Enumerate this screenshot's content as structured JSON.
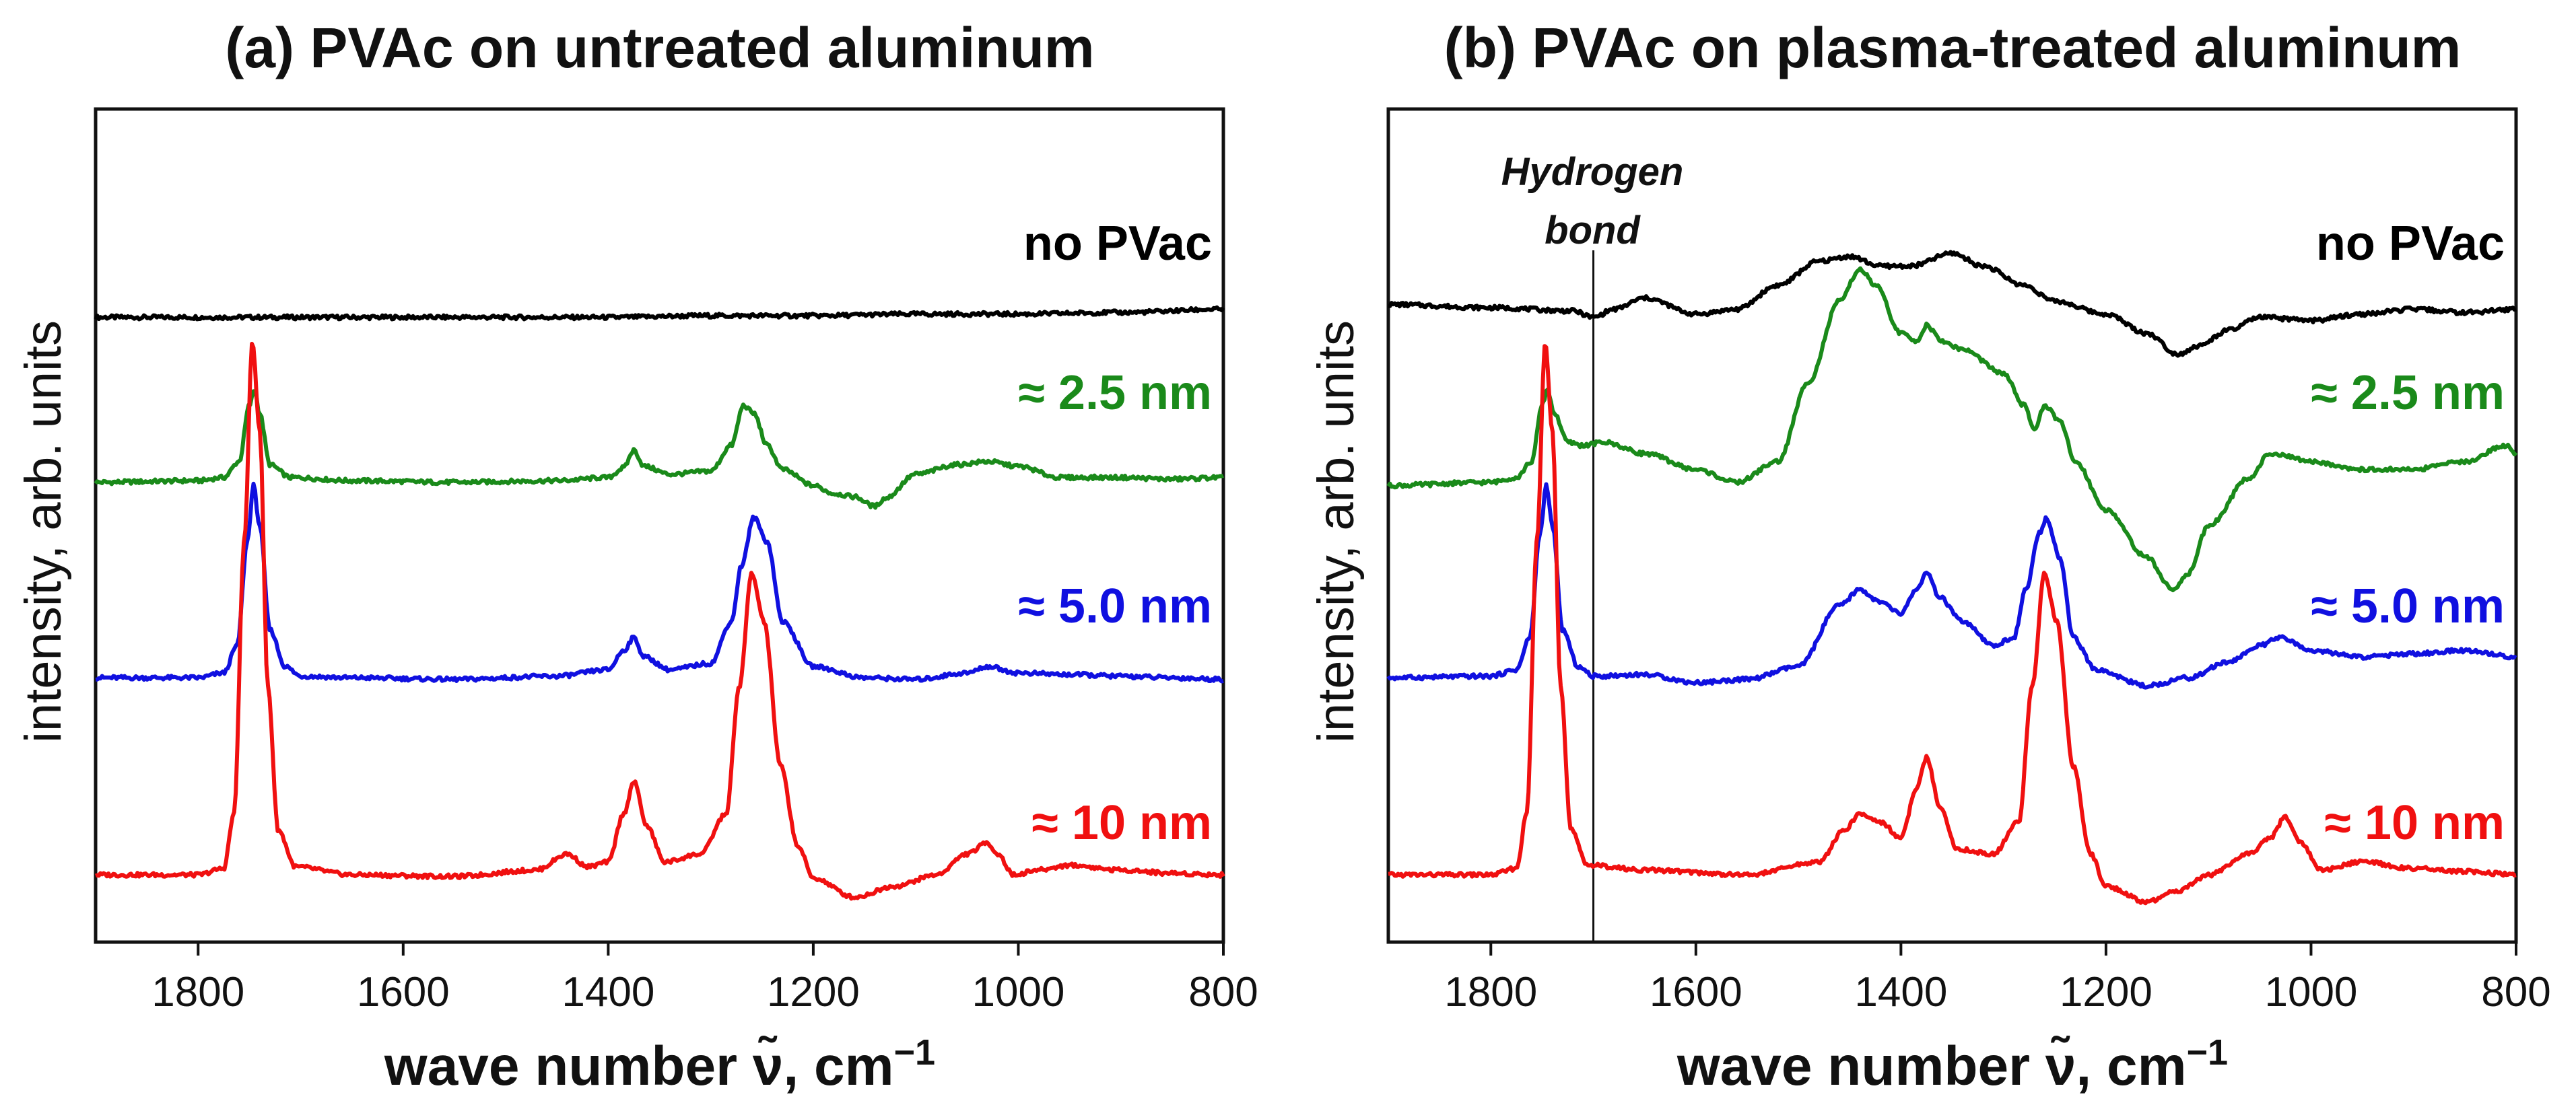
{
  "chart_data": [
    {
      "panel": "a",
      "type": "line",
      "title": "(a) PVAc on untreated aluminum",
      "xlabel": "wave number",
      "xlabel_symbol": "ν̃",
      "xlabel_unit": ", cm",
      "xlabel_unit_sup": "−1",
      "ylabel": "intensity, arb. units",
      "xlim": [
        1900,
        800
      ],
      "ylim": [
        0,
        5.2
      ],
      "xticks": [
        1800,
        1600,
        1400,
        1200,
        1000,
        800
      ],
      "series": [
        {
          "name": "no PVac",
          "color": "#000000",
          "x": [
            1900,
            1800,
            1700,
            1600,
            1500,
            1400,
            1300,
            1200,
            1100,
            1000,
            900,
            800
          ],
          "y": [
            3.9,
            3.9,
            3.9,
            3.9,
            3.9,
            3.9,
            3.91,
            3.91,
            3.92,
            3.92,
            3.93,
            3.95
          ]
        },
        {
          "name": "≈ 2.5 nm",
          "color": "#1a8a1a",
          "x": [
            1900,
            1800,
            1775,
            1760,
            1750,
            1745,
            1740,
            1730,
            1710,
            1650,
            1550,
            1450,
            1400,
            1385,
            1375,
            1365,
            1340,
            1300,
            1280,
            1268,
            1258,
            1245,
            1230,
            1200,
            1180,
            1160,
            1140,
            1130,
            1100,
            1060,
            1030,
            1000,
            960,
            900,
            850,
            800
          ],
          "y": [
            2.87,
            2.88,
            2.9,
            3.0,
            3.35,
            3.45,
            3.3,
            2.98,
            2.9,
            2.88,
            2.87,
            2.88,
            2.9,
            2.96,
            3.07,
            2.97,
            2.92,
            2.94,
            3.1,
            3.35,
            3.3,
            3.1,
            2.95,
            2.85,
            2.8,
            2.78,
            2.72,
            2.77,
            2.92,
            2.98,
            3.0,
            2.97,
            2.9,
            2.9,
            2.89,
            2.9
          ]
        },
        {
          "name": "≈ 5.0 nm",
          "color": "#1010e0",
          "x": [
            1900,
            1800,
            1775,
            1762,
            1752,
            1746,
            1740,
            1730,
            1715,
            1700,
            1650,
            1550,
            1450,
            1400,
            1385,
            1375,
            1365,
            1340,
            1300,
            1280,
            1270,
            1258,
            1245,
            1230,
            1200,
            1150,
            1100,
            1050,
            1030,
            1000,
            950,
            900,
            850,
            800
          ],
          "y": [
            1.65,
            1.65,
            1.68,
            1.85,
            2.5,
            2.85,
            2.6,
            1.95,
            1.72,
            1.66,
            1.65,
            1.64,
            1.66,
            1.7,
            1.82,
            1.9,
            1.78,
            1.7,
            1.74,
            2.0,
            2.35,
            2.65,
            2.5,
            2.0,
            1.72,
            1.65,
            1.64,
            1.68,
            1.72,
            1.68,
            1.67,
            1.66,
            1.65,
            1.64
          ]
        },
        {
          "name": "≈ 10 nm",
          "color": "#f01010",
          "x": [
            1900,
            1800,
            1775,
            1765,
            1755,
            1747,
            1740,
            1732,
            1722,
            1705,
            1650,
            1550,
            1470,
            1440,
            1420,
            1400,
            1385,
            1375,
            1362,
            1345,
            1310,
            1285,
            1272,
            1260,
            1248,
            1232,
            1215,
            1200,
            1160,
            1120,
            1080,
            1050,
            1030,
            1020,
            1005,
            980,
            950,
            900,
            850,
            800
          ],
          "y": [
            0.42,
            0.42,
            0.46,
            0.8,
            2.5,
            3.75,
            3.2,
            1.6,
            0.7,
            0.47,
            0.42,
            0.41,
            0.45,
            0.55,
            0.47,
            0.5,
            0.8,
            1.0,
            0.72,
            0.5,
            0.55,
            0.8,
            1.6,
            2.3,
            2.0,
            1.1,
            0.6,
            0.4,
            0.28,
            0.35,
            0.42,
            0.55,
            0.62,
            0.55,
            0.42,
            0.45,
            0.48,
            0.45,
            0.43,
            0.42
          ]
        }
      ]
    },
    {
      "panel": "b",
      "type": "line",
      "title": "(b) PVAc on plasma-treated aluminum",
      "xlabel": "wave number",
      "xlabel_symbol": "ν̃",
      "xlabel_unit": ", cm",
      "xlabel_unit_sup": "−1",
      "ylabel": "intensity, arb. units",
      "xlim": [
        1900,
        800
      ],
      "ylim": [
        0,
        5.2
      ],
      "xticks": [
        1800,
        1600,
        1400,
        1200,
        1000,
        800
      ],
      "vline": {
        "x": 1700,
        "label_line1": "Hydrogen",
        "label_line2": "bond"
      },
      "series": [
        {
          "name": "no PVac",
          "color": "#000000",
          "x": [
            1900,
            1800,
            1720,
            1700,
            1680,
            1650,
            1600,
            1560,
            1520,
            1480,
            1450,
            1420,
            1390,
            1350,
            1320,
            1280,
            1250,
            1200,
            1160,
            1130,
            1110,
            1080,
            1050,
            1000,
            950,
            900,
            850,
            800
          ],
          "y": [
            3.98,
            3.96,
            3.94,
            3.9,
            3.95,
            4.02,
            3.92,
            3.95,
            4.1,
            4.25,
            4.28,
            4.22,
            4.22,
            4.3,
            4.22,
            4.1,
            4.0,
            3.92,
            3.8,
            3.67,
            3.72,
            3.82,
            3.9,
            3.88,
            3.92,
            3.95,
            3.93,
            3.95
          ]
        },
        {
          "name": "≈ 2.5 nm",
          "color": "#1a8a1a",
          "x": [
            1900,
            1800,
            1775,
            1760,
            1750,
            1745,
            1738,
            1725,
            1710,
            1690,
            1650,
            1600,
            1560,
            1520,
            1490,
            1460,
            1440,
            1425,
            1400,
            1385,
            1375,
            1360,
            1340,
            1300,
            1280,
            1270,
            1260,
            1245,
            1230,
            1200,
            1160,
            1135,
            1120,
            1100,
            1060,
            1040,
            1000,
            950,
            900,
            850,
            810,
            800
          ],
          "y": [
            2.85,
            2.87,
            2.9,
            3.0,
            3.35,
            3.45,
            3.3,
            3.12,
            3.1,
            3.12,
            3.05,
            2.95,
            2.87,
            3.0,
            3.5,
            4.0,
            4.2,
            4.1,
            3.8,
            3.75,
            3.85,
            3.75,
            3.7,
            3.55,
            3.35,
            3.2,
            3.35,
            3.25,
            3.0,
            2.7,
            2.4,
            2.2,
            2.3,
            2.6,
            2.9,
            3.05,
            3.0,
            2.95,
            2.95,
            3.0,
            3.1,
            3.05
          ]
        },
        {
          "name": "≈ 5.0 nm",
          "color": "#1010e0",
          "x": [
            1900,
            1800,
            1775,
            1762,
            1752,
            1746,
            1740,
            1730,
            1715,
            1700,
            1650,
            1600,
            1550,
            1500,
            1460,
            1440,
            1420,
            1400,
            1385,
            1375,
            1362,
            1340,
            1310,
            1290,
            1278,
            1265,
            1258,
            1245,
            1232,
            1210,
            1160,
            1120,
            1080,
            1050,
            1030,
            1000,
            950,
            900,
            850,
            800
          ],
          "y": [
            1.65,
            1.66,
            1.7,
            1.9,
            2.55,
            2.85,
            2.6,
            1.95,
            1.72,
            1.66,
            1.67,
            1.62,
            1.64,
            1.72,
            2.1,
            2.2,
            2.12,
            2.05,
            2.2,
            2.3,
            2.15,
            2.0,
            1.85,
            1.9,
            2.2,
            2.55,
            2.65,
            2.4,
            1.9,
            1.7,
            1.6,
            1.65,
            1.75,
            1.85,
            1.9,
            1.82,
            1.78,
            1.8,
            1.82,
            1.78
          ]
        },
        {
          "name": "≈ 10 nm",
          "color": "#f01010",
          "x": [
            1900,
            1800,
            1775,
            1765,
            1755,
            1747,
            1740,
            1732,
            1722,
            1705,
            1650,
            1550,
            1480,
            1455,
            1440,
            1420,
            1400,
            1385,
            1375,
            1362,
            1345,
            1310,
            1285,
            1272,
            1260,
            1248,
            1232,
            1215,
            1200,
            1160,
            1130,
            1100,
            1060,
            1040,
            1025,
            1010,
            990,
            950,
            900,
            850,
            800
          ],
          "y": [
            0.42,
            0.42,
            0.46,
            0.8,
            2.5,
            3.75,
            3.2,
            1.6,
            0.7,
            0.48,
            0.45,
            0.42,
            0.5,
            0.7,
            0.8,
            0.75,
            0.65,
            0.95,
            1.15,
            0.85,
            0.58,
            0.55,
            0.75,
            1.6,
            2.3,
            2.0,
            1.1,
            0.55,
            0.35,
            0.25,
            0.32,
            0.42,
            0.55,
            0.65,
            0.78,
            0.62,
            0.45,
            0.5,
            0.46,
            0.44,
            0.42
          ]
        }
      ]
    }
  ]
}
